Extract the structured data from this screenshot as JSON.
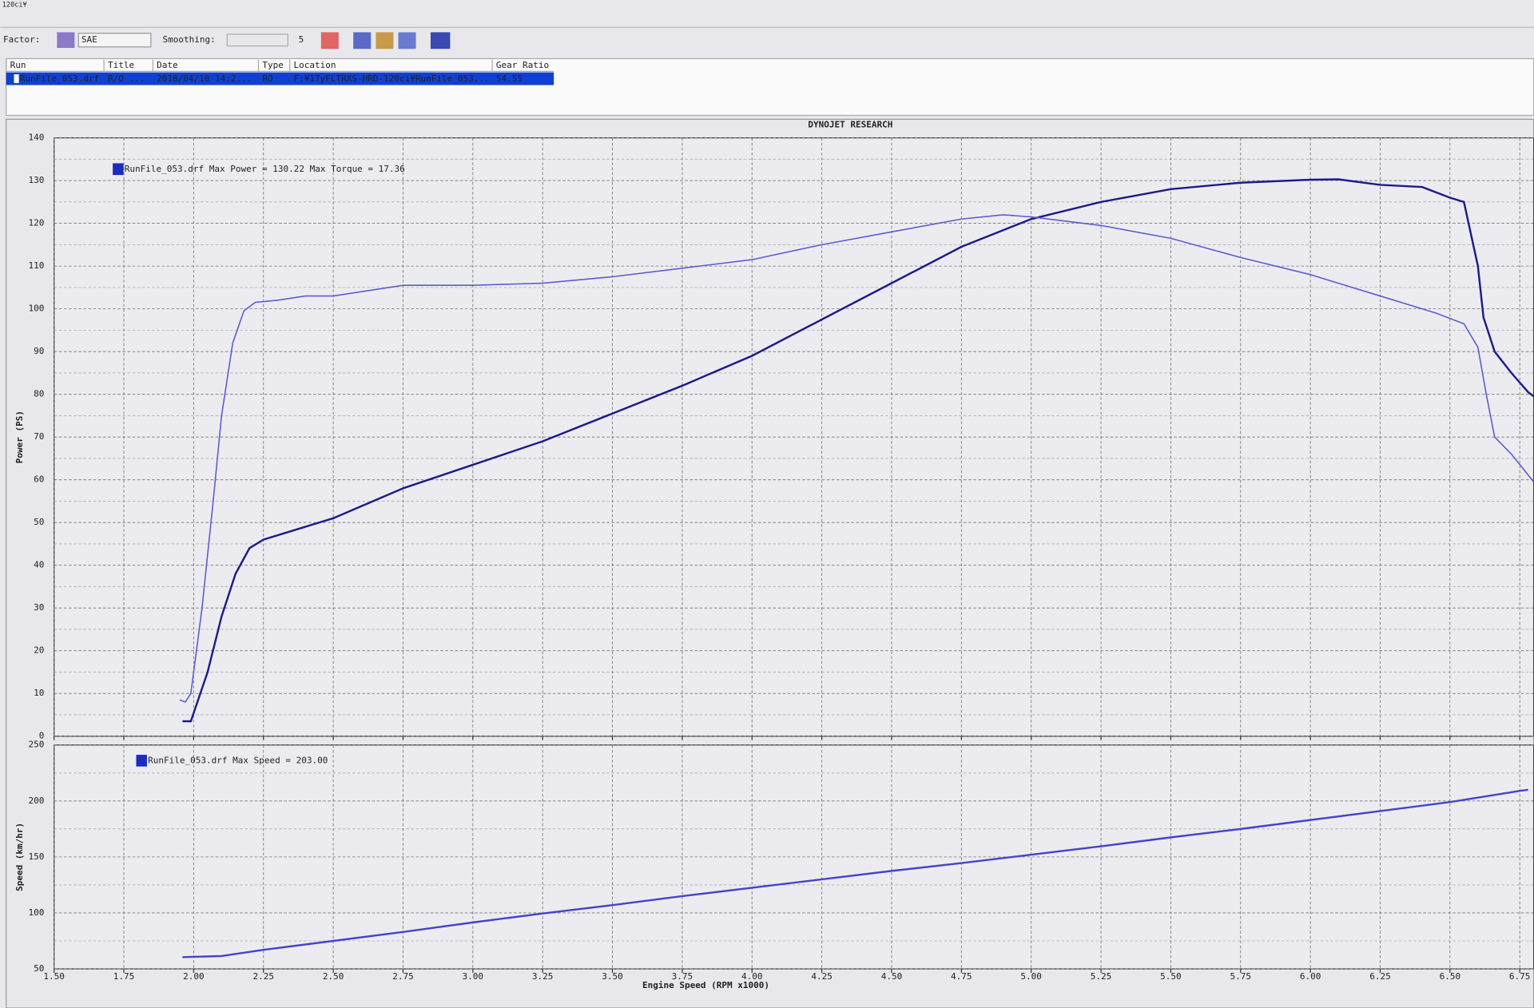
{
  "window_title": "120ci¥",
  "toolbar": {
    "factor_label": "Factor:",
    "factor_value": "SAE",
    "smoothing_label": "Smoothing:",
    "smoothing_value": "5"
  },
  "table": {
    "headers": [
      "Run",
      "Title",
      "Date",
      "Type",
      "Location",
      "Gear Ratio"
    ],
    "rows": [
      [
        "RunFile_053.drf",
        "R/O ...",
        "2018/04/10 14:2...",
        "RO",
        "F:¥17yFLTRXS-HRD-120ci¥RunFile_053...",
        "54.55"
      ]
    ]
  },
  "header": "DYNOJET RESEARCH",
  "chart_data": [
    {
      "type": "line",
      "ylabel": "Power (PS)",
      "legend": "RunFile_053.drf Max Power = 130.22  Max Torque = 17.36",
      "xlim": [
        1.5,
        6.8
      ],
      "xticks": [
        1.5,
        1.75,
        2,
        2.25,
        2.5,
        2.75,
        3,
        3.25,
        3.5,
        3.75,
        4,
        4.25,
        4.5,
        4.75,
        5,
        5.25,
        5.5,
        5.75,
        6,
        6.25,
        6.5,
        6.75
      ],
      "ylim": [
        0,
        140
      ],
      "yticks": [
        0,
        10,
        20,
        30,
        40,
        50,
        60,
        70,
        80,
        90,
        100,
        110,
        120,
        130,
        140
      ],
      "grid": true,
      "series": [
        {
          "color": "#1c1c8a",
          "x": [
            1.96,
            1.99,
            2.05,
            2.1,
            2.15,
            2.2,
            2.25,
            2.5,
            2.75,
            3,
            3.25,
            3.5,
            3.75,
            4,
            4.25,
            4.5,
            4.75,
            5,
            5.25,
            5.5,
            5.75,
            6,
            6.1,
            6.25,
            6.4,
            6.5,
            6.55,
            6.6,
            6.62,
            6.66,
            6.72,
            6.78,
            6.8
          ],
          "values": [
            3.5,
            3.5,
            15,
            28,
            38,
            44,
            46,
            51,
            58,
            63.5,
            69,
            75.5,
            82,
            89,
            97.5,
            106,
            114.5,
            121,
            125,
            128,
            129.5,
            130.2,
            130.3,
            129,
            128.5,
            126,
            125,
            110,
            98,
            90,
            85,
            80.5,
            79.5
          ]
        },
        {
          "color": "#5c5cd0",
          "x": [
            1.95,
            1.97,
            1.99,
            2.03,
            2.07,
            2.1,
            2.14,
            2.18,
            2.22,
            2.3,
            2.4,
            2.5,
            2.75,
            3,
            3.25,
            3.5,
            3.75,
            4,
            4.25,
            4.5,
            4.75,
            4.9,
            5,
            5.25,
            5.5,
            5.75,
            6,
            6.25,
            6.45,
            6.55,
            6.6,
            6.63,
            6.66,
            6.72,
            6.8
          ],
          "values": [
            8.5,
            8,
            10,
            30,
            55,
            75,
            92,
            99.5,
            101.5,
            102,
            103,
            103,
            105.5,
            105.5,
            106,
            107.5,
            109.5,
            111.5,
            115,
            118,
            121,
            122,
            121.5,
            119.5,
            116.5,
            112,
            108,
            103,
            99,
            96.5,
            91,
            80,
            70,
            66,
            59.5
          ]
        }
      ]
    },
    {
      "type": "line",
      "ylabel": "Speed (km/hr)",
      "xlabel": "Engine Speed (RPM x1000)",
      "legend": "RunFile_053.drf Max Speed = 203.00",
      "xlim": [
        1.5,
        6.8
      ],
      "xticks": [
        {
          "value": 1.5,
          "label": "1.50"
        },
        {
          "value": 1.75,
          "label": "1.75"
        },
        {
          "value": 2,
          "label": "2.00"
        },
        {
          "value": 2.25,
          "label": "2.25"
        },
        {
          "value": 2.5,
          "label": "2.50"
        },
        {
          "value": 2.75,
          "label": "2.75"
        },
        {
          "value": 3,
          "label": "3.00"
        },
        {
          "value": 3.25,
          "label": "3.25"
        },
        {
          "value": 3.5,
          "label": "3.50"
        },
        {
          "value": 3.75,
          "label": "3.75"
        },
        {
          "value": 4,
          "label": "4.00"
        },
        {
          "value": 4.25,
          "label": "4.25"
        },
        {
          "value": 4.5,
          "label": "4.50"
        },
        {
          "value": 4.75,
          "label": "4.75"
        },
        {
          "value": 5,
          "label": "5.00"
        },
        {
          "value": 5.25,
          "label": "5.25"
        },
        {
          "value": 5.5,
          "label": "5.50"
        },
        {
          "value": 5.75,
          "label": "5.75"
        },
        {
          "value": 6,
          "label": "6.00"
        },
        {
          "value": 6.25,
          "label": "6.25"
        },
        {
          "value": 6.5,
          "label": "6.50"
        },
        {
          "value": 6.75,
          "label": "6.75"
        }
      ],
      "ylim": [
        50,
        250
      ],
      "yticks": [
        50,
        100,
        150,
        200,
        250
      ],
      "grid": true,
      "series": [
        {
          "color": "#4444cc",
          "x": [
            1.96,
            2.1,
            2.25,
            2.5,
            2.75,
            3,
            3.25,
            3.5,
            3.75,
            4,
            4.25,
            4.5,
            4.75,
            5,
            5.25,
            5.5,
            5.75,
            6,
            6.25,
            6.5,
            6.75,
            6.78
          ],
          "values": [
            60.5,
            61.5,
            67,
            75,
            83,
            91.5,
            99.5,
            107,
            115,
            122.5,
            130,
            137.5,
            144.5,
            152,
            159.5,
            167.5,
            175,
            183,
            191,
            199,
            209,
            210
          ]
        }
      ]
    }
  ]
}
